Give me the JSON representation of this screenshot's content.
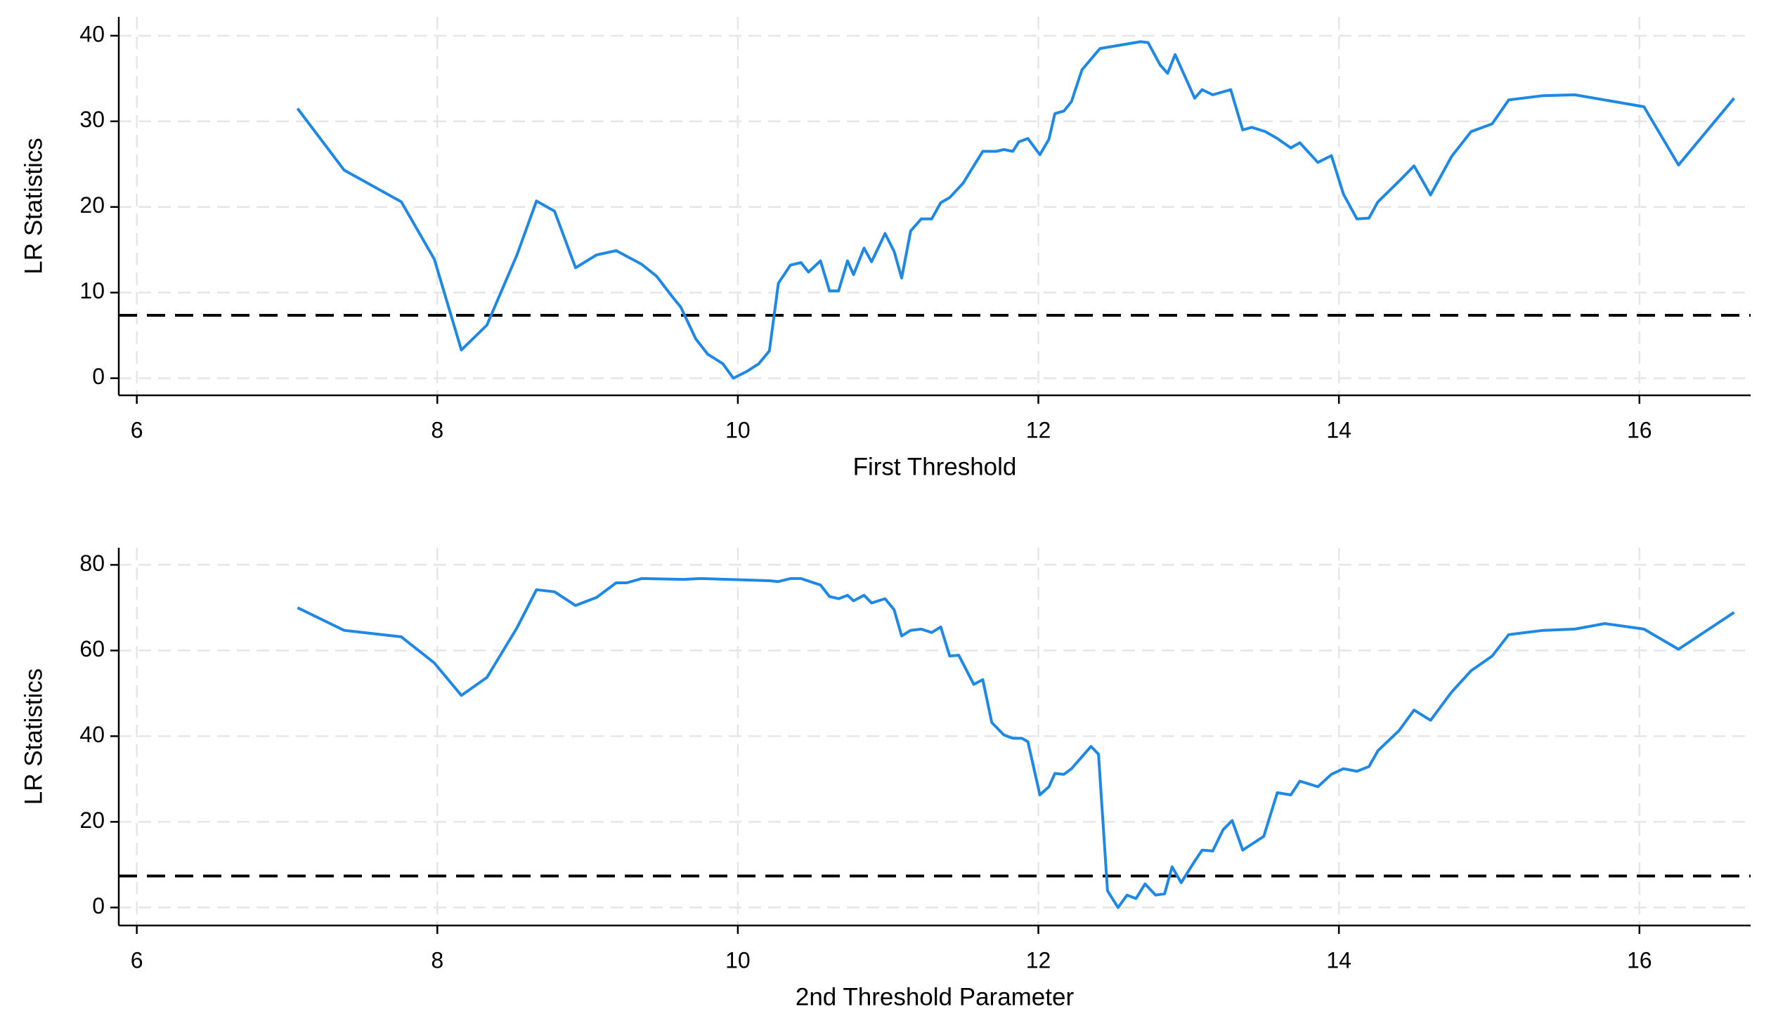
{
  "chart_data": [
    {
      "type": "line",
      "xlabel": "First Threshold",
      "ylabel": "LR Statistics",
      "xlim": [
        5.88,
        16.74
      ],
      "ylim": [
        -2,
        42.2
      ],
      "xticks": [
        6,
        8,
        10,
        12,
        14,
        16
      ],
      "yticks": [
        0,
        10,
        20,
        30,
        40
      ],
      "grid": true,
      "color": "#1e88e5",
      "reference_line": 7.35,
      "reference_color": "#000000",
      "x": [
        7.07,
        7.38,
        7.76,
        7.98,
        8.16,
        8.33,
        8.53,
        8.66,
        8.78,
        8.92,
        9.06,
        9.19,
        9.36,
        9.46,
        9.56,
        9.62,
        9.72,
        9.8,
        9.9,
        9.97,
        10.06,
        10.14,
        10.21,
        10.27,
        10.35,
        10.42,
        10.47,
        10.55,
        10.61,
        10.67,
        10.73,
        10.77,
        10.84,
        10.89,
        10.98,
        11.04,
        11.09,
        11.15,
        11.22,
        11.29,
        11.35,
        11.41,
        11.5,
        11.57,
        11.63,
        11.72,
        11.77,
        11.83,
        11.87,
        11.93,
        12.01,
        12.07,
        12.11,
        12.17,
        12.22,
        12.29,
        12.41,
        12.68,
        12.73,
        12.81,
        12.86,
        12.91,
        13.04,
        13.09,
        13.16,
        13.28,
        13.36,
        13.42,
        13.51,
        13.59,
        13.68,
        13.74,
        13.86,
        13.95,
        14.03,
        14.12,
        14.2,
        14.26,
        14.4,
        14.5,
        14.61,
        14.75,
        14.88,
        15.02,
        15.13,
        15.36,
        15.57,
        16.03,
        16.26,
        16.63
      ],
      "values": [
        31.5,
        24.3,
        20.6,
        13.9,
        3.3,
        6.2,
        14.4,
        20.7,
        19.5,
        12.9,
        14.4,
        14.9,
        13.3,
        11.9,
        9.6,
        8.3,
        4.6,
        2.8,
        1.7,
        0,
        0.8,
        1.7,
        3.2,
        11.1,
        13.2,
        13.5,
        12.4,
        13.7,
        10.2,
        10.2,
        13.7,
        12.1,
        15.2,
        13.6,
        16.9,
        14.8,
        11.7,
        17.2,
        18.6,
        18.6,
        20.5,
        21.1,
        22.8,
        24.8,
        26.5,
        26.5,
        26.7,
        26.5,
        27.6,
        28.0,
        26.1,
        27.9,
        30.9,
        31.2,
        32.3,
        36.0,
        38.5,
        39.3,
        39.2,
        36.6,
        35.6,
        37.8,
        32.7,
        33.7,
        33.1,
        33.7,
        29.0,
        29.3,
        28.8,
        28.0,
        26.9,
        27.5,
        25.2,
        26.0,
        21.5,
        18.6,
        18.7,
        20.6,
        23.0,
        24.8,
        21.4,
        25.9,
        28.8,
        29.7,
        32.5,
        33.0,
        33.1,
        31.7,
        24.9,
        32.7
      ]
    },
    {
      "type": "line",
      "xlabel": "2nd Threshold Parameter",
      "ylabel": "LR Statistics",
      "xlim": [
        5.88,
        16.74
      ],
      "ylim": [
        -4.2,
        84
      ],
      "xticks": [
        6,
        8,
        10,
        12,
        14,
        16
      ],
      "yticks": [
        0,
        20,
        40,
        60,
        80
      ],
      "grid": true,
      "color": "#1e88e5",
      "reference_line": 7.35,
      "reference_color": "#000000",
      "x": [
        7.07,
        7.38,
        7.76,
        7.98,
        8.16,
        8.33,
        8.53,
        8.66,
        8.78,
        8.92,
        9.06,
        9.19,
        9.26,
        9.36,
        9.64,
        9.75,
        10.21,
        10.27,
        10.35,
        10.42,
        10.55,
        10.61,
        10.67,
        10.73,
        10.77,
        10.84,
        10.89,
        10.98,
        11.04,
        11.09,
        11.15,
        11.22,
        11.29,
        11.35,
        11.41,
        11.47,
        11.57,
        11.63,
        11.69,
        11.77,
        11.83,
        11.89,
        11.93,
        12.01,
        12.07,
        12.11,
        12.17,
        12.22,
        12.35,
        12.4,
        12.46,
        12.53,
        12.59,
        12.65,
        12.71,
        12.78,
        12.84,
        12.89,
        12.95,
        13.04,
        13.09,
        13.16,
        13.23,
        13.29,
        13.36,
        13.5,
        13.59,
        13.68,
        13.74,
        13.86,
        13.95,
        14.03,
        14.12,
        14.2,
        14.26,
        14.4,
        14.5,
        14.61,
        14.75,
        14.88,
        15.02,
        15.13,
        15.36,
        15.57,
        15.77,
        16.03,
        16.26,
        16.63
      ],
      "values": [
        70.0,
        64.7,
        63.2,
        57.1,
        49.5,
        53.7,
        65.3,
        74.2,
        73.7,
        70.5,
        72.4,
        75.8,
        75.8,
        76.8,
        76.6,
        76.8,
        76.3,
        76.1,
        76.8,
        76.8,
        75.3,
        72.6,
        72.1,
        72.9,
        71.6,
        72.9,
        71.1,
        72.1,
        69.5,
        63.4,
        64.7,
        65.0,
        64.2,
        65.5,
        58.7,
        58.9,
        52.1,
        53.2,
        43.2,
        40.3,
        39.5,
        39.5,
        38.7,
        26.3,
        28.2,
        31.3,
        31.1,
        32.4,
        37.6,
        35.8,
        3.9,
        0,
        2.9,
        2.1,
        5.5,
        2.9,
        3.2,
        9.5,
        5.8,
        10.8,
        13.4,
        13.2,
        18.2,
        20.3,
        13.4,
        16.6,
        26.8,
        26.3,
        29.5,
        28.2,
        31.1,
        32.4,
        31.8,
        32.9,
        36.6,
        41.3,
        46.1,
        43.7,
        50.3,
        55.3,
        58.7,
        63.7,
        64.7,
        65.0,
        66.3,
        65.0,
        60.3,
        68.9
      ]
    }
  ]
}
